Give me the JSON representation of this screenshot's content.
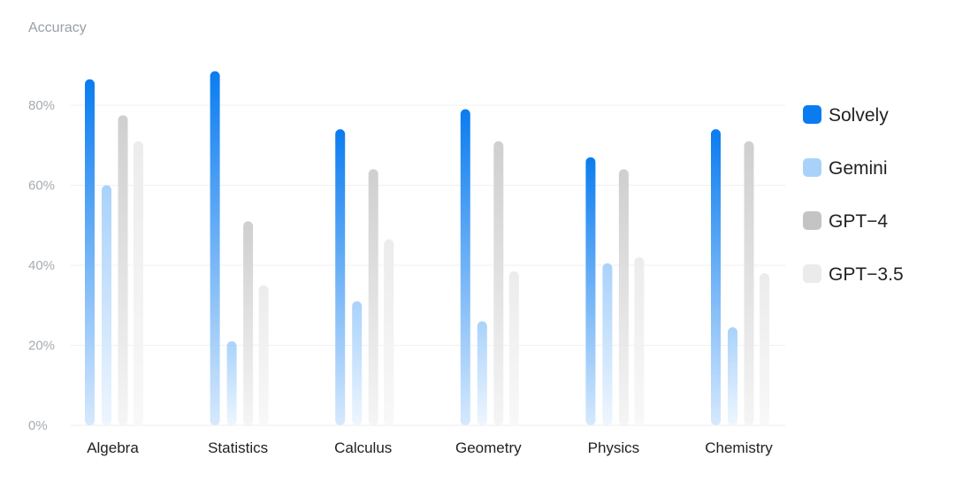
{
  "chart_data": {
    "type": "bar",
    "title": "",
    "ylabel": "Accuracy",
    "xlabel": "",
    "ylim": [
      0,
      90
    ],
    "yticks": [
      0,
      20,
      40,
      60,
      80
    ],
    "ytick_labels": [
      "0%",
      "20%",
      "40%",
      "60%",
      "80%"
    ],
    "categories": [
      "Algebra",
      "Statistics",
      "Calculus",
      "Geometry",
      "Physics",
      "Chemistry"
    ],
    "series": [
      {
        "name": "Solvely",
        "values": [
          86.5,
          88.5,
          74,
          79,
          67,
          74
        ],
        "color": "#0a7cf0",
        "fade_color": "#d6e9fd"
      },
      {
        "name": "Gemini",
        "values": [
          60,
          21,
          31,
          26,
          40.5,
          24.5
        ],
        "color": "#a9d2fb",
        "fade_color": "#eef6fe"
      },
      {
        "name": "GPT−4",
        "values": [
          77.5,
          51,
          64,
          71,
          64,
          71
        ],
        "color": "#cfcfcf",
        "fade_color": "#f5f5f5"
      },
      {
        "name": "GPT−3.5",
        "values": [
          71,
          35,
          46.5,
          38.5,
          42,
          38
        ],
        "color": "#ececec",
        "fade_color": "#f8f8f8"
      }
    ],
    "grid": true,
    "legend_position": "right"
  }
}
